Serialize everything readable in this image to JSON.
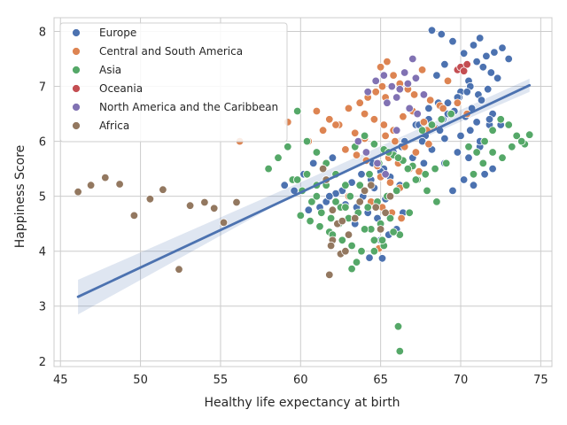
{
  "chart_data": {
    "type": "scatter",
    "title": "",
    "xlabel": "Healthy life expectancy at birth",
    "ylabel": "Happiness Score",
    "xlim": [
      44.6,
      75.7
    ],
    "ylim": [
      1.9,
      8.25
    ],
    "xticks": [
      45,
      50,
      55,
      60,
      65,
      70,
      75
    ],
    "yticks": [
      2,
      3,
      4,
      5,
      6,
      7,
      8
    ],
    "grid": true,
    "legend_position": "top-left",
    "series": [
      {
        "name": "Europe",
        "color": "#4C72B0",
        "x": [
          68.2,
          68.8,
          69.5,
          70.2,
          70.8,
          71.2,
          71.6,
          72.1,
          72.6,
          73.0,
          68.5,
          69.0,
          69.8,
          70.5,
          71.0,
          71.4,
          71.9,
          72.3,
          70.0,
          70.6,
          71.1,
          71.7,
          69.2,
          69.9,
          70.7,
          71.3,
          72.0,
          68.9,
          69.6,
          70.3,
          71.0,
          71.8,
          66.0,
          66.5,
          67.2,
          67.8,
          68.4,
          69.0,
          65.8,
          66.3,
          67.0,
          67.6,
          68.2,
          64.5,
          65.2,
          65.8,
          66.4,
          67.0,
          63.8,
          64.4,
          65.0,
          65.6,
          66.2,
          62.6,
          63.2,
          63.9,
          64.6,
          65.3,
          61.6,
          62.2,
          62.8,
          63.5,
          64.2,
          60.5,
          61.2,
          61.8,
          65.0,
          65.5,
          66.0,
          69.5,
          70.2,
          70.8,
          71.5,
          72.0,
          69.0,
          69.8,
          70.5,
          71.2,
          70.0,
          70.6,
          71.2,
          71.8,
          72.5,
          68.0,
          68.6,
          69.2,
          69.8,
          70.4,
          67.4,
          68.0,
          68.7,
          69.4,
          59.0,
          59.6,
          60.2,
          60.8,
          62.0,
          64.3,
          65.1,
          66.4,
          67.7,
          63.4,
          64.0,
          64.8
        ],
        "y": [
          8.02,
          7.95,
          7.82,
          7.6,
          7.75,
          7.88,
          7.55,
          7.62,
          7.7,
          7.5,
          7.2,
          7.4,
          7.3,
          7.1,
          7.45,
          7.35,
          7.25,
          7.15,
          6.9,
          7.0,
          6.85,
          6.95,
          6.7,
          6.8,
          6.6,
          6.75,
          6.5,
          6.4,
          6.55,
          6.45,
          6.35,
          6.3,
          6.2,
          6.0,
          6.3,
          6.1,
          6.25,
          6.05,
          5.8,
          5.9,
          5.7,
          6.0,
          5.85,
          5.6,
          5.5,
          5.75,
          5.65,
          5.55,
          5.4,
          5.3,
          5.45,
          5.35,
          5.2,
          5.1,
          5.25,
          5.0,
          5.15,
          4.95,
          4.9,
          5.05,
          4.85,
          4.8,
          4.7,
          4.75,
          4.8,
          5.0,
          4.2,
          4.3,
          4.4,
          5.1,
          5.3,
          5.2,
          5.4,
          5.5,
          5.6,
          5.8,
          5.7,
          5.9,
          6.1,
          6.2,
          6.0,
          6.4,
          6.3,
          6.6,
          6.7,
          6.5,
          6.8,
          6.9,
          6.3,
          6.4,
          6.2,
          6.5,
          5.2,
          5.1,
          5.4,
          5.6,
          5.7,
          3.88,
          3.87,
          4.7,
          5.6,
          4.5,
          4.4,
          4.6
        ]
      },
      {
        "name": "Central and South America",
        "color": "#DD8452",
        "x": [
          56.2,
          59.2,
          61.0,
          61.8,
          62.4,
          63.0,
          63.7,
          64.2,
          64.7,
          65.1,
          65.4,
          65.8,
          66.2,
          66.7,
          67.1,
          67.6,
          68.1,
          68.7,
          69.2,
          64.0,
          64.6,
          65.2,
          65.8,
          66.4,
          67.0,
          67.7,
          68.3,
          68.9,
          63.4,
          64.0,
          64.6,
          65.3,
          65.9,
          66.5,
          67.2,
          67.9,
          62.8,
          63.5,
          64.1,
          64.8,
          65.5,
          66.1,
          66.8,
          67.4,
          68.0,
          65.0,
          65.6,
          66.2,
          63.0,
          64.4,
          65.1,
          65.7,
          66.3,
          64.9,
          69.8,
          70.4,
          60.5,
          61.4,
          62.2,
          65.0,
          65.3
        ],
        "y": [
          6.0,
          6.35,
          6.55,
          6.4,
          6.3,
          6.6,
          6.7,
          6.8,
          6.9,
          7.0,
          7.45,
          7.2,
          7.05,
          6.95,
          6.85,
          7.3,
          6.75,
          6.65,
          7.1,
          6.5,
          6.4,
          6.3,
          6.2,
          6.45,
          6.55,
          6.35,
          6.25,
          6.6,
          6.15,
          6.05,
          5.95,
          6.1,
          6.0,
          5.9,
          5.8,
          6.2,
          5.85,
          5.75,
          5.65,
          5.55,
          5.7,
          5.6,
          5.5,
          5.45,
          5.95,
          5.35,
          5.25,
          5.15,
          5.0,
          4.9,
          4.8,
          4.7,
          4.6,
          4.05,
          6.7,
          6.5,
          6.0,
          6.2,
          6.3,
          7.35,
          6.8
        ]
      },
      {
        "name": "Asia",
        "color": "#55A868",
        "x": [
          58.0,
          58.6,
          59.2,
          59.8,
          60.4,
          61.0,
          61.6,
          62.2,
          62.8,
          63.4,
          64.0,
          64.6,
          65.2,
          65.8,
          66.4,
          67.0,
          67.6,
          68.2,
          68.8,
          69.4,
          59.5,
          60.1,
          60.7,
          61.3,
          61.9,
          62.5,
          63.1,
          63.7,
          64.3,
          64.9,
          65.5,
          66.1,
          66.7,
          67.3,
          67.9,
          68.5,
          69.1,
          60.0,
          60.6,
          61.2,
          61.8,
          62.4,
          63.0,
          63.6,
          64.2,
          64.8,
          65.4,
          66.0,
          66.6,
          67.2,
          67.8,
          68.4,
          70.5,
          71.0,
          71.5,
          72.0,
          72.5,
          73.0,
          73.5,
          74.0,
          74.3,
          70.8,
          71.4,
          72.0,
          72.6,
          73.2,
          73.8,
          62.0,
          62.6,
          63.2,
          63.8,
          64.4,
          65.0,
          65.6,
          66.2,
          66.8,
          61.0,
          61.6,
          62.2,
          62.8,
          63.4,
          64.0,
          64.6,
          65.2,
          65.8,
          59.8,
          60.4,
          61.0,
          66.1,
          66.2,
          63.2,
          63.5,
          64.6,
          65.1
        ],
        "y": [
          5.5,
          5.7,
          5.9,
          6.55,
          6.0,
          5.8,
          5.6,
          5.4,
          5.2,
          5.9,
          6.1,
          5.95,
          5.85,
          5.75,
          5.65,
          5.55,
          6.2,
          6.3,
          6.4,
          6.5,
          5.3,
          5.1,
          4.9,
          4.7,
          4.6,
          4.8,
          5.0,
          5.2,
          5.4,
          5.6,
          5.8,
          5.7,
          5.5,
          5.3,
          5.1,
          4.9,
          5.6,
          4.65,
          4.55,
          4.45,
          4.35,
          4.5,
          4.6,
          4.7,
          4.8,
          4.9,
          5.0,
          5.1,
          5.2,
          5.3,
          5.4,
          5.5,
          5.9,
          5.8,
          6.0,
          6.2,
          6.4,
          6.3,
          6.1,
          5.95,
          6.12,
          5.4,
          5.6,
          5.8,
          5.7,
          5.9,
          6.0,
          4.3,
          4.2,
          4.1,
          4.0,
          4.4,
          4.5,
          4.6,
          4.3,
          4.7,
          5.0,
          5.2,
          4.9,
          4.8,
          4.6,
          4.4,
          4.2,
          4.1,
          4.35,
          5.3,
          5.4,
          5.2,
          2.63,
          2.18,
          3.68,
          3.8,
          4.0,
          4.2
        ]
      },
      {
        "name": "Oceania",
        "color": "#C44E52",
        "x": [
          69.8,
          70.0,
          70.2,
          70.4
        ],
        "y": [
          7.3,
          7.35,
          7.28,
          7.4
        ]
      },
      {
        "name": "North America and the Caribbean",
        "color": "#8172B3",
        "x": [
          64.2,
          64.7,
          65.2,
          65.7,
          66.2,
          66.7,
          67.2,
          67.7,
          66.0,
          66.5,
          67.0,
          65.4,
          66.8,
          67.3,
          63.6,
          64.1,
          64.8,
          65.3,
          66.0
        ],
        "y": [
          6.9,
          7.1,
          7.2,
          7.0,
          6.95,
          7.05,
          7.15,
          6.85,
          6.8,
          7.25,
          7.5,
          6.7,
          6.6,
          6.5,
          6.0,
          5.8,
          5.6,
          5.4,
          6.2
        ]
      },
      {
        "name": "Africa",
        "color": "#937860",
        "x": [
          46.1,
          46.9,
          47.8,
          48.7,
          49.6,
          50.6,
          51.4,
          52.4,
          53.1,
          54.0,
          54.6,
          55.2,
          56.0,
          61.8,
          62.0,
          62.3,
          62.5,
          62.8,
          63.0,
          63.4,
          63.7,
          64.0,
          64.4,
          64.7,
          65.0,
          65.3,
          65.6,
          61.4,
          61.6,
          62.0,
          61.9,
          62.6
        ],
        "y": [
          5.08,
          5.2,
          5.34,
          5.22,
          4.65,
          4.95,
          5.12,
          3.67,
          4.83,
          4.89,
          4.78,
          4.52,
          4.89,
          3.57,
          4.2,
          4.5,
          3.95,
          4.0,
          4.3,
          4.6,
          4.9,
          5.1,
          5.2,
          4.8,
          4.4,
          4.7,
          5.0,
          5.5,
          5.3,
          4.75,
          4.1,
          4.55
        ]
      }
    ],
    "regression": {
      "x": [
        46.1,
        74.3
      ],
      "y": [
        3.17,
        7.02
      ],
      "ci_lower": [
        2.85,
        6.9
      ],
      "ci_upper": [
        3.48,
        7.14
      ],
      "ci_lower_mid": 5.12,
      "ci_upper_mid": 5.28,
      "x_mid": 60.2,
      "color": "#4C72B0"
    }
  }
}
